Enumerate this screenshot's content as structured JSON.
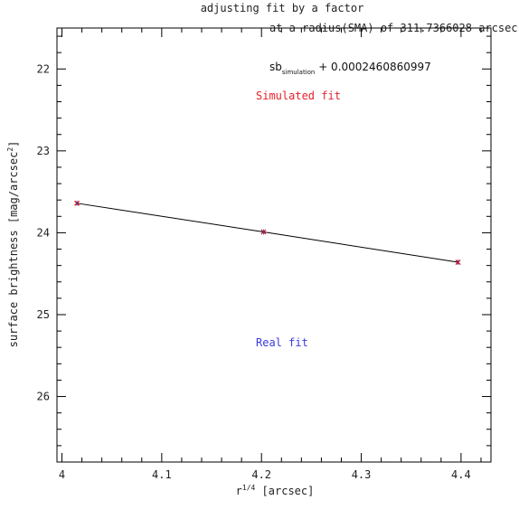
{
  "chart_data": {
    "type": "line",
    "title_lines": [
      "adjusting fit by a factor",
      "at a radius(SMA) of 311.7366028 arcsec"
    ],
    "xlabel_prefix": "r",
    "xlabel_sup": "1/4",
    "xlabel_suffix": " [arcsec]",
    "ylabel_prefix": "surface brightness [mag/arcsec",
    "ylabel_sup": "2",
    "ylabel_suffix": "]",
    "xlim": [
      3.995,
      4.43
    ],
    "ylim": [
      26.8,
      21.5
    ],
    "y_inverted": true,
    "xticks": [
      4.0,
      4.1,
      4.2,
      4.3,
      4.4
    ],
    "xtick_labels": [
      "4",
      "4.1",
      "4.2",
      "4.3",
      "4.4"
    ],
    "yticks": [
      22,
      23,
      24,
      25,
      26
    ],
    "ytick_labels": [
      "22",
      "23",
      "24",
      "25",
      "26"
    ],
    "x_minor_step": 0.02,
    "y_minor_step": 0.2,
    "series": [
      {
        "color": "#000000",
        "style": "line",
        "x": [
          4.015,
          4.202,
          4.397
        ],
        "y": [
          23.64,
          23.99,
          24.36
        ]
      },
      {
        "color": "#cc0000",
        "style": "markers",
        "x": [
          4.015,
          4.202,
          4.397
        ],
        "y": [
          23.64,
          23.99,
          24.36
        ]
      }
    ],
    "annotations": {
      "formula_base": "sb",
      "formula_sub": "simulation",
      "formula_rest": " + 0.0002460860997",
      "simulated_label": "Simulated fit",
      "simulated_color": "#e8202a",
      "real_label": "Real fit",
      "real_color": "#3a3ae0"
    },
    "grid": false,
    "legend": "none"
  }
}
